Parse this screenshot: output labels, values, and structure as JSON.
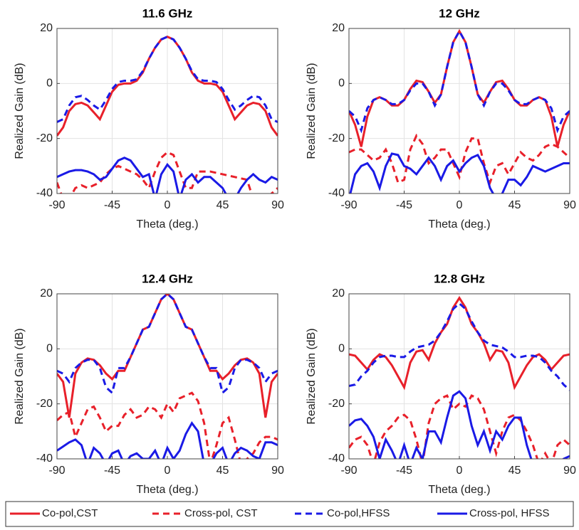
{
  "chart_data": [
    {
      "type": "line",
      "title": "11.6 GHz",
      "xlabel": "Theta (deg.)",
      "ylabel": "Realized Gain (dB)",
      "x": [
        -90,
        -85,
        -80,
        -75,
        -70,
        -65,
        -60,
        -55,
        -50,
        -45,
        -40,
        -35,
        -30,
        -25,
        -20,
        -15,
        -10,
        -5,
        0,
        5,
        10,
        15,
        20,
        25,
        30,
        35,
        40,
        45,
        50,
        55,
        60,
        65,
        70,
        75,
        80,
        85,
        90
      ],
      "xlim": [
        -90,
        90
      ],
      "ylim": [
        -40,
        20
      ],
      "xticks": [
        -90,
        -45,
        0,
        45,
        90
      ],
      "yticks": [
        -40,
        -20,
        0,
        20
      ],
      "grid": true,
      "series": [
        {
          "name": "Co-pol,CST",
          "color": "#e8202a",
          "dash": false,
          "values": [
            -19,
            -16,
            -10,
            -7.5,
            -7,
            -8,
            -10.5,
            -13,
            -8,
            -3,
            -0.5,
            0,
            0,
            1,
            4,
            9,
            13,
            16,
            17,
            16,
            13,
            9,
            4,
            1,
            0,
            0,
            -0.5,
            -3,
            -8,
            -13,
            -10.5,
            -8,
            -7,
            -7.5,
            -10,
            -16,
            -19
          ]
        },
        {
          "name": "Cross-pol, CST",
          "color": "#e8202a",
          "dash": true,
          "values": [
            -36,
            -42,
            -42,
            -38,
            -37,
            -38,
            -37,
            -36,
            -33,
            -31,
            -30,
            -31,
            -32,
            -33,
            -35,
            -38,
            -32,
            -27,
            -25,
            -26,
            -32,
            -38,
            -38,
            -32,
            -32,
            -32,
            -32.5,
            -33,
            -33.5,
            -34,
            -34.5,
            -35,
            -42,
            -42,
            -42,
            -40,
            -38
          ]
        },
        {
          "name": "Co-pol,HFSS",
          "color": "#1a1ae6",
          "dash": true,
          "values": [
            -14,
            -13,
            -8,
            -5,
            -4.5,
            -6,
            -8,
            -9.5,
            -6,
            -2,
            0.5,
            1,
            1,
            1.5,
            4.5,
            9,
            13,
            16,
            17,
            16,
            13,
            9,
            4.5,
            1.5,
            1,
            1,
            0.5,
            -2,
            -6,
            -9.5,
            -8,
            -6,
            -4.5,
            -5,
            -8,
            -13,
            -14
          ]
        },
        {
          "name": "Cross-pol, HFSS",
          "color": "#1a1ae6",
          "dash": false,
          "values": [
            -34,
            -33,
            -32,
            -31.5,
            -31.5,
            -32,
            -33,
            -35,
            -34,
            -31,
            -28,
            -27,
            -28,
            -31,
            -34,
            -33,
            -42,
            -33,
            -29.5,
            -32,
            -42,
            -35,
            -33,
            -36,
            -34,
            -34,
            -36,
            -38,
            -42,
            -42,
            -38,
            -35,
            -33,
            -35,
            -36,
            -34,
            -35
          ]
        }
      ]
    },
    {
      "type": "line",
      "title": "12 GHz",
      "xlabel": "Theta (deg.)",
      "ylabel": "Realized Gain (dB)",
      "x": [
        -90,
        -85,
        -80,
        -75,
        -70,
        -65,
        -60,
        -55,
        -50,
        -45,
        -40,
        -35,
        -30,
        -25,
        -20,
        -15,
        -10,
        -5,
        0,
        5,
        10,
        15,
        20,
        25,
        30,
        35,
        40,
        45,
        50,
        55,
        60,
        65,
        70,
        75,
        80,
        85,
        90
      ],
      "xlim": [
        -90,
        90
      ],
      "ylim": [
        -40,
        20
      ],
      "xticks": [
        -90,
        -45,
        0,
        45,
        90
      ],
      "yticks": [
        -40,
        -20,
        0,
        20
      ],
      "grid": true,
      "series": [
        {
          "name": "Co-pol,CST",
          "color": "#e8202a",
          "dash": false,
          "values": [
            -10,
            -15,
            -23,
            -12,
            -6,
            -5,
            -6,
            -8,
            -8,
            -6,
            -2,
            1,
            0.5,
            -3,
            -7,
            -4,
            6,
            15,
            19,
            15,
            6,
            -4,
            -7,
            -3,
            0.5,
            1,
            -2,
            -6,
            -8,
            -8,
            -6,
            -5,
            -6,
            -12,
            -23,
            -15,
            -10
          ]
        },
        {
          "name": "Cross-pol, CST",
          "color": "#e8202a",
          "dash": true,
          "values": [
            -25,
            -24,
            -24,
            -26,
            -28,
            -27,
            -24,
            -29,
            -36,
            -35,
            -24,
            -19,
            -22,
            -29,
            -27,
            -24,
            -24,
            -29,
            -34,
            -25,
            -20,
            -20,
            -29,
            -36,
            -30,
            -29,
            -33,
            -29,
            -25,
            -27,
            -28,
            -26,
            -23,
            -22,
            -23,
            -25,
            -27
          ]
        },
        {
          "name": "Co-pol,HFSS",
          "color": "#1a1ae6",
          "dash": true,
          "values": [
            -10,
            -12,
            -17,
            -9,
            -6,
            -5,
            -6,
            -7.5,
            -7.5,
            -6,
            -2.5,
            0,
            0,
            -3,
            -8,
            -4,
            6,
            15,
            19,
            15,
            6,
            -4,
            -8,
            -3,
            0,
            0,
            -2.5,
            -6,
            -7.5,
            -7.5,
            -6,
            -5,
            -6,
            -9,
            -17,
            -12,
            -10
          ]
        },
        {
          "name": "Cross-pol, HFSS",
          "color": "#1a1ae6",
          "dash": false,
          "values": [
            -42,
            -33,
            -30,
            -29,
            -32,
            -38,
            -30,
            -25.5,
            -26,
            -30,
            -31,
            -33,
            -30,
            -27,
            -30,
            -35,
            -30,
            -28,
            -32,
            -29,
            -27,
            -26,
            -30,
            -38,
            -42,
            -40,
            -35,
            -35,
            -37,
            -34,
            -30,
            -31,
            -32,
            -31,
            -30,
            -29,
            -29
          ]
        }
      ]
    },
    {
      "type": "line",
      "title": "12.4 GHz",
      "xlabel": "Theta (deg.)",
      "ylabel": "Realized Gain (dB)",
      "x": [
        -90,
        -85,
        -80,
        -75,
        -70,
        -65,
        -60,
        -55,
        -50,
        -45,
        -40,
        -35,
        -30,
        -25,
        -20,
        -15,
        -10,
        -5,
        0,
        5,
        10,
        15,
        20,
        25,
        30,
        35,
        40,
        45,
        50,
        55,
        60,
        65,
        70,
        75,
        80,
        85,
        90
      ],
      "xlim": [
        -90,
        90
      ],
      "ylim": [
        -40,
        20
      ],
      "xticks": [
        -90,
        -45,
        0,
        45,
        90
      ],
      "yticks": [
        -40,
        -20,
        0,
        20
      ],
      "grid": true,
      "series": [
        {
          "name": "Co-pol,CST",
          "color": "#e8202a",
          "dash": false,
          "values": [
            -9,
            -12,
            -25,
            -9,
            -5,
            -3.5,
            -4,
            -6,
            -9,
            -11,
            -8,
            -8,
            -3,
            2,
            7,
            8,
            13,
            18,
            20,
            18,
            13,
            8,
            7,
            2,
            -3,
            -8,
            -8,
            -11,
            -9,
            -6,
            -4,
            -3.5,
            -5,
            -9,
            -25,
            -12,
            -9
          ]
        },
        {
          "name": "Cross-pol, CST",
          "color": "#e8202a",
          "dash": true,
          "values": [
            -26,
            -24,
            -23,
            -32,
            -27,
            -22,
            -21,
            -25,
            -30,
            -28,
            -28,
            -24,
            -22,
            -25,
            -24,
            -21,
            -22,
            -25,
            -20,
            -23,
            -18,
            -17,
            -16,
            -19,
            -27,
            -42,
            -35,
            -27,
            -25,
            -33,
            -42,
            -40,
            -38,
            -34,
            -32,
            -32,
            -33
          ]
        },
        {
          "name": "Co-pol,HFSS",
          "color": "#1a1ae6",
          "dash": true,
          "values": [
            -8,
            -9,
            -12,
            -7,
            -5,
            -4,
            -4,
            -7,
            -14,
            -16,
            -7,
            -7,
            -3,
            2,
            7,
            8,
            13,
            18,
            20,
            18,
            13,
            8,
            7,
            2,
            -3,
            -7,
            -7,
            -16,
            -14,
            -7,
            -4,
            -4,
            -5,
            -7,
            -12,
            -9,
            -8
          ]
        },
        {
          "name": "Cross-pol, HFSS",
          "color": "#1a1ae6",
          "dash": false,
          "values": [
            -37,
            -35.5,
            -34,
            -33,
            -35,
            -42,
            -36,
            -38,
            -42,
            -38,
            -37,
            -42,
            -39,
            -38,
            -40,
            -40,
            -37,
            -42,
            -36,
            -40,
            -37,
            -31,
            -27,
            -30,
            -42,
            -42,
            -38,
            -36,
            -42,
            -38,
            -36,
            -37,
            -39,
            -40,
            -34,
            -34,
            -35
          ]
        }
      ]
    },
    {
      "type": "line",
      "title": "12.8 GHz",
      "xlabel": "Theta (deg.)",
      "ylabel": "Realized Gain (dB)",
      "x": [
        -90,
        -85,
        -80,
        -75,
        -70,
        -65,
        -60,
        -55,
        -50,
        -45,
        -40,
        -35,
        -30,
        -25,
        -20,
        -15,
        -10,
        -5,
        0,
        5,
        10,
        15,
        20,
        25,
        30,
        35,
        40,
        45,
        50,
        55,
        60,
        65,
        70,
        75,
        80,
        85,
        90
      ],
      "xlim": [
        -90,
        90
      ],
      "ylim": [
        -40,
        20
      ],
      "xticks": [
        -90,
        -45,
        0,
        45,
        90
      ],
      "yticks": [
        -40,
        -20,
        0,
        20
      ],
      "grid": true,
      "series": [
        {
          "name": "Co-pol,CST",
          "color": "#e8202a",
          "dash": false,
          "values": [
            -2,
            -2.5,
            -5,
            -7.5,
            -4,
            -2,
            -3,
            -6,
            -10,
            -14,
            -5,
            -1,
            -0.5,
            -4,
            2,
            6,
            9,
            15,
            18.5,
            15,
            9,
            6,
            2,
            -4,
            -0.5,
            -1,
            -5,
            -14,
            -10,
            -6,
            -3,
            -2,
            -4,
            -7.5,
            -5,
            -2.5,
            -2
          ]
        },
        {
          "name": "Cross-pol, CST",
          "color": "#e8202a",
          "dash": true,
          "values": [
            -36,
            -33,
            -32,
            -35,
            -42,
            -34,
            -30,
            -28,
            -25,
            -24,
            -26,
            -33,
            -42,
            -27,
            -20,
            -18,
            -17,
            -22,
            -20,
            -21,
            -17,
            -18,
            -22,
            -30,
            -38,
            -30,
            -25,
            -24,
            -26,
            -30,
            -35,
            -42,
            -38,
            -42,
            -35,
            -33,
            -35
          ]
        },
        {
          "name": "Co-pol,HFSS",
          "color": "#1a1ae6",
          "dash": true,
          "values": [
            -13.5,
            -13,
            -10,
            -8,
            -5,
            -3,
            -2.5,
            -2.5,
            -3,
            -3,
            -1,
            0.5,
            1,
            1.5,
            3,
            6,
            10,
            14.5,
            16.5,
            14.5,
            10,
            6,
            3,
            1.5,
            1,
            0.5,
            -1,
            -3,
            -3,
            -2.5,
            -2.5,
            -3,
            -5,
            -8,
            -10,
            -13,
            -15
          ]
        },
        {
          "name": "Cross-pol, HFSS",
          "color": "#1a1ae6",
          "dash": false,
          "values": [
            -28,
            -26,
            -25.5,
            -28,
            -32,
            -40,
            -33,
            -37,
            -42,
            -35,
            -42,
            -36,
            -40,
            -30,
            -30,
            -34,
            -25,
            -17,
            -15.5,
            -18,
            -28,
            -35,
            -30,
            -37,
            -30,
            -33,
            -28,
            -25,
            -25,
            -35,
            -42,
            -42,
            -42,
            -42,
            -42,
            -40,
            -39
          ]
        }
      ]
    }
  ]
}
